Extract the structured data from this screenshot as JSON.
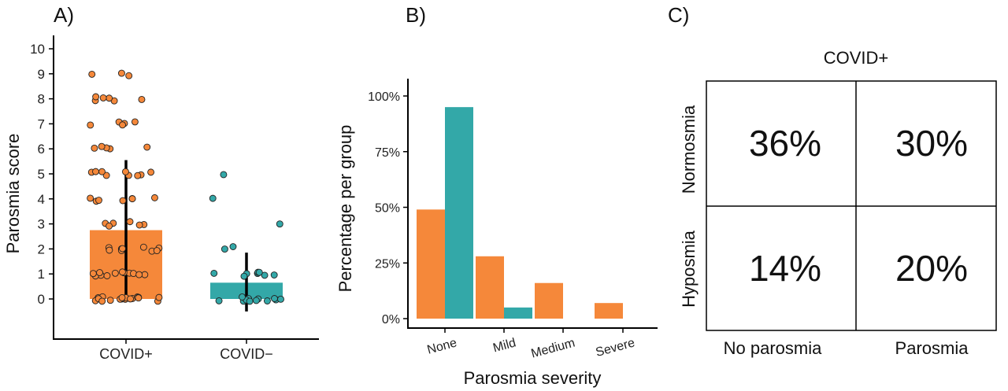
{
  "colors": {
    "covid_pos": "#F5883A",
    "covid_neg": "#33A8A8",
    "axis": "#000000"
  },
  "panels": {
    "a": "A)",
    "b": "B)",
    "c": "C)"
  },
  "chart_data": [
    {
      "type": "bar",
      "panel": "A)",
      "ylabel": "Parosmia score",
      "xlabel": "",
      "categories": [
        "COVID+",
        "COVID−"
      ],
      "ylim": [
        -1.5,
        10.3
      ],
      "yticks": [
        "0",
        "1",
        "2",
        "3",
        "4",
        "5",
        "6",
        "7",
        "8",
        "9",
        "10"
      ],
      "values": [
        2.75,
        0.65
      ],
      "error_bars": [
        [
          0,
          5.55
        ],
        [
          -0.5,
          1.85
        ]
      ],
      "points": [
        {
          "group": "COVID+",
          "counts": {
            "0": 18,
            "1": 12,
            "2": 9,
            "3": 6,
            "4": 7,
            "5": 9,
            "6": 5,
            "7": 5,
            "8": 6,
            "9": 3
          }
        },
        {
          "group": "COVID−",
          "counts": {
            "0": 12,
            "1": 8,
            "2": 2,
            "3": 1,
            "4": 1,
            "5": 1
          }
        }
      ]
    },
    {
      "type": "bar",
      "panel": "B)",
      "xlabel": "Parosmia severity",
      "ylabel": "Percentage per group",
      "categories": [
        "None",
        "Mild",
        "Medium",
        "Severe"
      ],
      "ylim": [
        0,
        100
      ],
      "yticks": [
        "0%",
        "25%",
        "50%",
        "75%",
        "100%"
      ],
      "series": [
        {
          "values": [
            49,
            28,
            16,
            7
          ]
        },
        {
          "values": [
            95,
            5,
            0,
            0
          ]
        }
      ]
    },
    {
      "type": "table",
      "panel": "C)",
      "title": "COVID+",
      "rows": [
        "Normosmia",
        "Hyposmia"
      ],
      "columns": [
        "No parosmia",
        "Parosmia"
      ],
      "cells": [
        [
          "36%",
          "30%"
        ],
        [
          "14%",
          "20%"
        ]
      ]
    }
  ]
}
